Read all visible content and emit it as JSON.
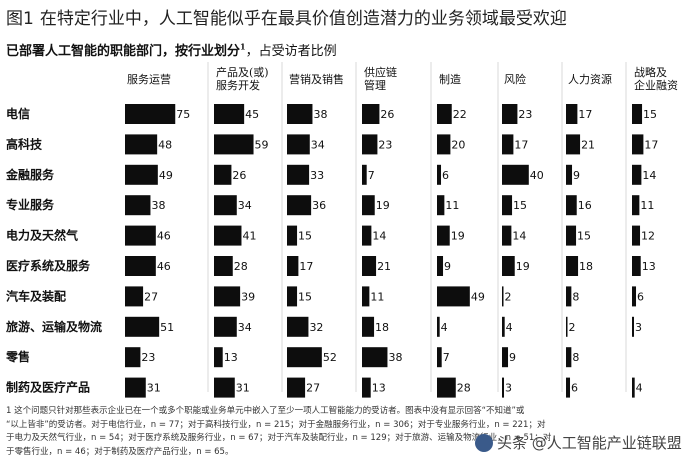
{
  "title": "在特定行业中，人工智能似乎在最具价值创造潜力的业务领域最受欢迎",
  "figure_number": "图1",
  "subtitle": {
    "main": "已部署人工智能的职能部门，按行业划分",
    "note": "1",
    "rest": "，占受访者比例"
  },
  "chart_data": {
    "type": "bar",
    "title": "已部署人工智能的职能部门，按行业划分，占受访者比例",
    "columns": [
      [
        "服务运营"
      ],
      [
        "产品及(或)",
        "服务开发"
      ],
      [
        "营销及销售"
      ],
      [
        "供应链",
        "管理"
      ],
      [
        "制造"
      ],
      [
        "风险"
      ],
      [
        "人力资源"
      ],
      [
        "战略及",
        "企业融资"
      ]
    ],
    "rows": [
      "电信",
      "高科技",
      "金融服务",
      "专业服务",
      "电力及天然气",
      "医疗系统及服务",
      "汽车及装配",
      "旅游、运输及物流",
      "零售",
      "制药及医疗产品"
    ],
    "values": [
      [
        75,
        45,
        38,
        26,
        22,
        23,
        17,
        15
      ],
      [
        48,
        59,
        34,
        23,
        20,
        17,
        21,
        17
      ],
      [
        49,
        26,
        33,
        7,
        6,
        40,
        9,
        14
      ],
      [
        38,
        34,
        36,
        19,
        11,
        15,
        16,
        11
      ],
      [
        46,
        41,
        15,
        14,
        19,
        14,
        15,
        12
      ],
      [
        46,
        28,
        17,
        21,
        9,
        19,
        18,
        13
      ],
      [
        27,
        39,
        15,
        11,
        49,
        2,
        8,
        6
      ],
      [
        51,
        34,
        32,
        18,
        4,
        4,
        2,
        3
      ],
      [
        23,
        13,
        52,
        38,
        7,
        9,
        8,
        null
      ],
      [
        31,
        31,
        27,
        13,
        28,
        3,
        6,
        4
      ]
    ],
    "bar_color": "#0d0d0d",
    "grid": false
  },
  "footnote": [
    "1 这个问题只针对那些表示企业已在一个或多个职能或业务单元中嵌入了至少一项人工智能能力的受访者。图表中没有显示回答“不知道”或",
    "“以上皆非”的受访者。对于电信行业，n = 77；对于高科技行业，n = 215；对于金融服务行业，n = 306；对于专业服务行业，n = 221；对",
    "于电力及天然气行业，n = 54；对于医疗系统及服务行业，n = 67；对于汽车及装配行业，n = 129；对于旅游、运输及物流行业，n = 51；对",
    "于零售行业，n = 46；对于制药及医疗产品行业，n = 65。"
  ],
  "watermark": "头条 @人工智能产业链联盟"
}
